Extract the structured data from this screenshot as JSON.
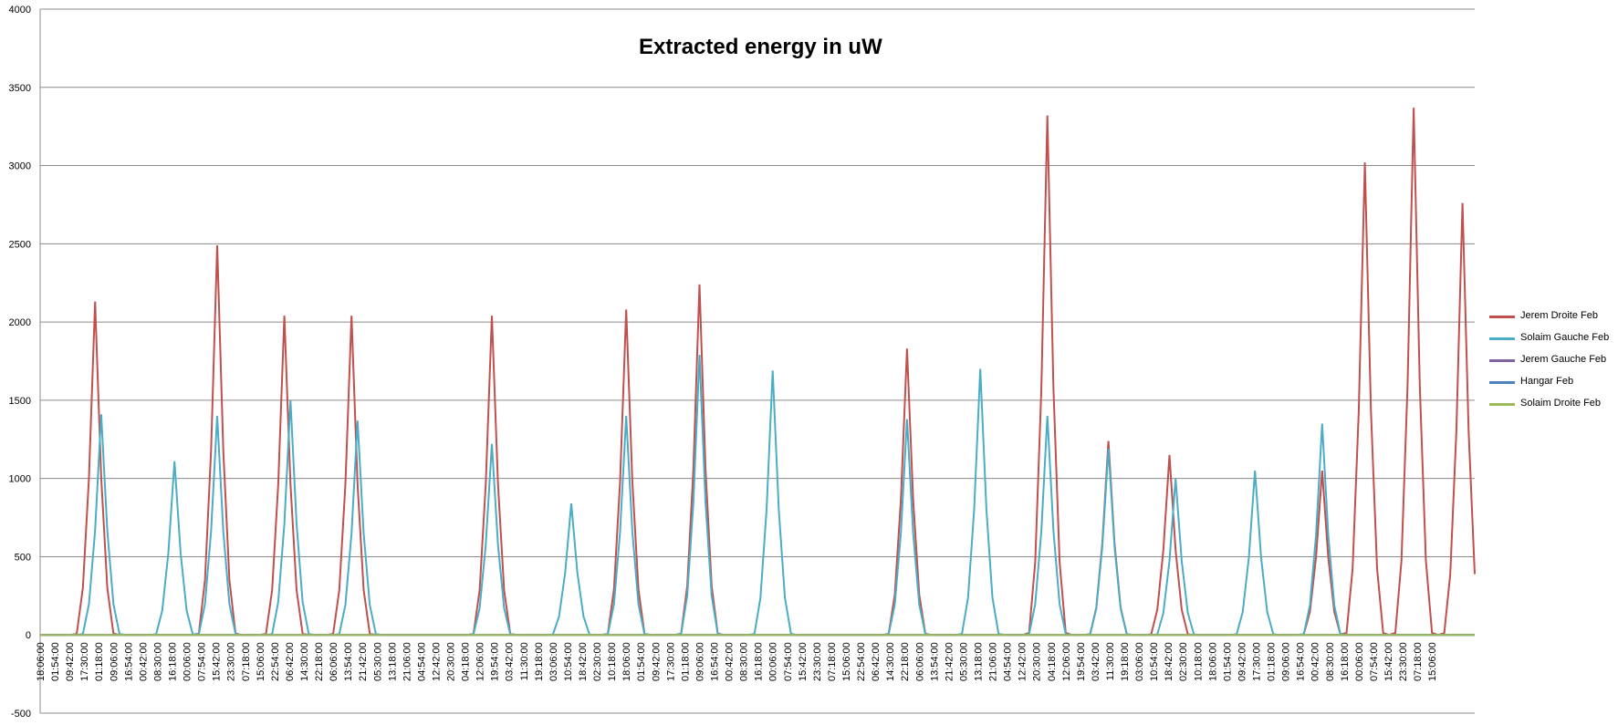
{
  "chart_data": {
    "type": "line",
    "title": "Extracted energy in uW",
    "xlabel": "",
    "ylabel": "",
    "ylim": [
      -500,
      4000
    ],
    "yticks": [
      -500,
      0,
      500,
      1000,
      1500,
      2000,
      2500,
      3000,
      3500,
      4000
    ],
    "grid": true,
    "legend_position": "right",
    "x_tick_labels": [
      "18:06:00",
      "01:54:00",
      "09:42:00",
      "17:30:00",
      "01:18:00",
      "09:06:00",
      "16:54:00",
      "00:42:00",
      "08:30:00",
      "16:18:00",
      "00:06:00",
      "07:54:00",
      "15:42:00",
      "23:30:00",
      "07:18:00",
      "15:06:00",
      "22:54:00",
      "06:42:00",
      "14:30:00",
      "22:18:00",
      "06:06:00",
      "13:54:00",
      "21:42:00",
      "05:30:00",
      "13:18:00",
      "21:06:00",
      "04:54:00",
      "12:42:00",
      "20:30:00",
      "04:18:00",
      "12:06:00",
      "19:54:00",
      "03:42:00",
      "11:30:00",
      "19:18:00",
      "03:06:00",
      "10:54:00",
      "18:42:00",
      "02:30:00",
      "10:18:00",
      "18:06:00",
      "01:54:00",
      "09:42:00",
      "17:30:00",
      "01:18:00",
      "09:06:00",
      "16:54:00",
      "00:42:00",
      "08:30:00",
      "16:18:00",
      "00:06:00",
      "07:54:00",
      "15:42:00",
      "23:30:00",
      "07:18:00",
      "15:06:00",
      "22:54:00",
      "06:42:00",
      "14:30:00",
      "22:18:00",
      "06:06:00",
      "13:54:00",
      "21:42:00",
      "05:30:00",
      "13:18:00",
      "21:06:00",
      "04:54:00",
      "12:42:00",
      "20:30:00",
      "04:18:00",
      "12:06:00",
      "19:54:00",
      "03:42:00",
      "11:30:00",
      "19:18:00",
      "03:06:00",
      "10:54:00",
      "18:42:00",
      "02:30:00",
      "10:18:00",
      "18:06:00",
      "01:54:00",
      "09:42:00",
      "17:30:00",
      "01:18:00",
      "09:06:00",
      "16:54:00",
      "00:42:00",
      "08:30:00",
      "16:18:00",
      "00:06:00",
      "07:54:00",
      "15:42:00",
      "23:30:00",
      "07:18:00",
      "15:06:00"
    ],
    "tick_index_positions": [
      0,
      2.4,
      4.8,
      7.2,
      9.6,
      12,
      14.4,
      16.8,
      19.2,
      21.6,
      24,
      26.4,
      28.8,
      31.2,
      33.6,
      36,
      38.4,
      40.8,
      43.2,
      45.6,
      48,
      50.4,
      52.8,
      55.2,
      57.6,
      60,
      62.4,
      64.8,
      67.2,
      69.6,
      72,
      74.4,
      76.8,
      79.2,
      81.6,
      84,
      86.4,
      88.8,
      91.2,
      93.6,
      96,
      98.4,
      100.8,
      103.2,
      105.6,
      108,
      110.4,
      112.8,
      115.2,
      117.6,
      120,
      122.4,
      124.8,
      127.2,
      129.6,
      132,
      134.4,
      136.8,
      139.2,
      141.6,
      144,
      146.4,
      148.8,
      151.2,
      153.6,
      156,
      158.4,
      160.8,
      163.2,
      165.6,
      168,
      170.4,
      172.8,
      175.2,
      177.6,
      180,
      182.4,
      184.8,
      187.2,
      189.6,
      192,
      194.4,
      196.8,
      199.2,
      201.6,
      204,
      206.4,
      208.8,
      211.2,
      213.6,
      216,
      218.4,
      220.8,
      223.2,
      225.6,
      228,
      230.4,
      232.8,
      235.2
    ],
    "x_count": 236,
    "series": [
      {
        "name": "Jerem Droite Feb",
        "color": "#c0504d",
        "peaks": [
          [
            9.2,
            2130
          ],
          [
            28.5,
            2490
          ],
          [
            39.8,
            2040
          ],
          [
            51,
            2040
          ],
          [
            73.5,
            2040
          ],
          [
            95.5,
            2080
          ],
          [
            107.5,
            2240
          ],
          [
            141.5,
            1830
          ],
          [
            164.5,
            3320
          ],
          [
            174.5,
            1240
          ],
          [
            185,
            1150
          ],
          [
            209.5,
            1050
          ],
          [
            217,
            3020
          ],
          [
            224.5,
            3370
          ],
          [
            232.5,
            2760
          ],
          [
            0,
            0
          ]
        ]
      },
      {
        "name": "Solaim Gauche Feb",
        "color": "#4bacc6",
        "peaks": [
          [
            9.8,
            1410
          ],
          [
            22,
            1110
          ],
          [
            29.2,
            1400
          ],
          [
            40.5,
            1500
          ],
          [
            51.8,
            1370
          ],
          [
            74.2,
            1220
          ],
          [
            86.5,
            840
          ],
          [
            96.2,
            1400
          ],
          [
            108.2,
            1790
          ],
          [
            119.5,
            1690
          ],
          [
            142.2,
            1380
          ],
          [
            153.5,
            1700
          ],
          [
            165.2,
            1400
          ],
          [
            175.2,
            1190
          ],
          [
            186.2,
            1000
          ],
          [
            198.5,
            1050
          ],
          [
            209.8,
            1350
          ],
          [
            0,
            0
          ]
        ]
      },
      {
        "name": "Jerem Gauche Feb",
        "color": "#8064a2",
        "peaks": [
          [
            0,
            0
          ]
        ]
      },
      {
        "name": "Hangar Feb",
        "color": "#4f81bd",
        "peaks": [
          [
            0,
            0
          ]
        ]
      },
      {
        "name": "Solaim Droite Feb",
        "color": "#9bbb59",
        "peaks": [
          [
            0,
            0
          ]
        ]
      }
    ]
  }
}
